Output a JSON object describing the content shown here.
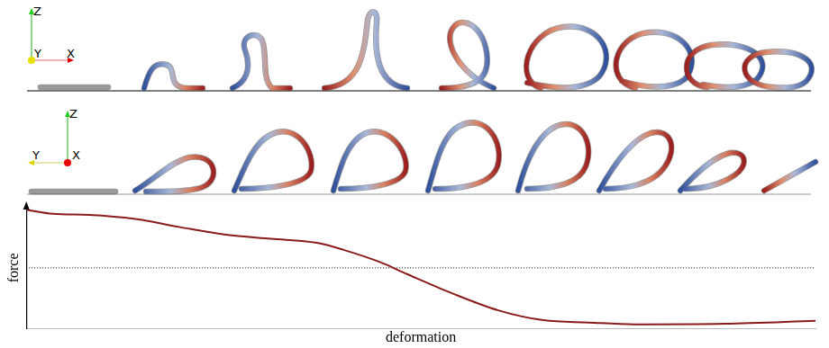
{
  "chart_data": {
    "type": "line",
    "x_label": "deformation",
    "y_label": "force",
    "x": [
      0,
      0.034,
      0.08,
      0.138,
      0.195,
      0.253,
      0.31,
      0.368,
      0.402,
      0.448,
      0.483,
      0.54,
      0.598,
      0.655,
      0.713,
      0.77,
      0.885,
      1
    ],
    "series": [
      {
        "color": "#8b1a1a",
        "line_style": "solid",
        "values": [
          1.0,
          0.93,
          0.91,
          0.84,
          0.7,
          0.57,
          0.5,
          0.43,
          0.31,
          0.1,
          -0.11,
          -0.44,
          -0.73,
          -0.9,
          -0.94,
          -0.97,
          -0.96,
          -0.91
        ]
      },
      {
        "color": "#000000",
        "line_style": "dotted",
        "values": [
          0,
          0,
          0,
          0,
          0,
          0,
          0,
          0,
          0,
          0,
          0,
          0,
          0,
          0,
          0,
          0,
          0,
          0
        ]
      }
    ],
    "xlim": [
      0,
      1
    ],
    "ylim": [
      -1.05,
      1.05
    ],
    "xticks": [],
    "yticks": [],
    "grid": false,
    "tick_labels": false
  },
  "figure": {
    "rows": [
      {
        "axis_labels": [
          "Z",
          "Y",
          "X"
        ]
      },
      {
        "axis_labels": [
          "Z",
          "Y",
          "X"
        ]
      }
    ]
  }
}
